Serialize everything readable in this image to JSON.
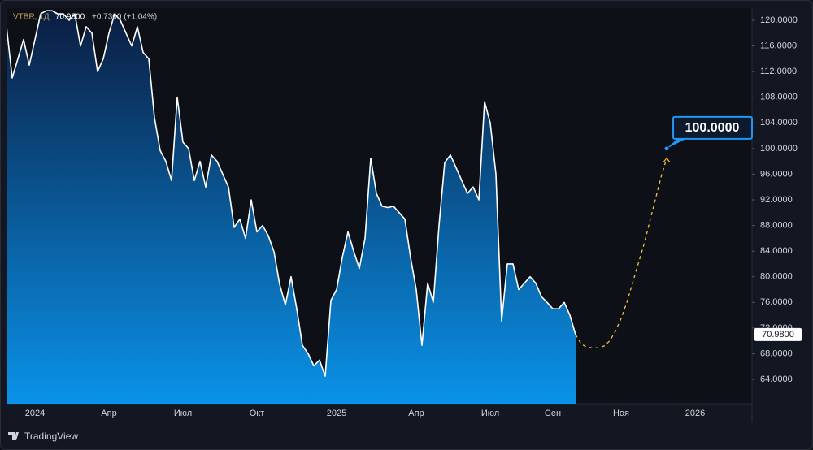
{
  "chart_data": {
    "type": "area",
    "symbol": "VTBR, 1Д",
    "price_label": "70.9800",
    "change": "+0.7300 (+1.04%)",
    "brand": "TradingView",
    "categories": [
      null,
      null,
      null,
      null,
      null,
      "2024",
      null,
      null,
      null,
      null,
      null,
      null,
      null,
      null,
      null,
      null,
      null,
      null,
      "Апр",
      null,
      null,
      null,
      null,
      null,
      null,
      null,
      null,
      null,
      null,
      null,
      null,
      "Июл",
      null,
      null,
      null,
      null,
      null,
      null,
      null,
      null,
      null,
      null,
      null,
      null,
      "Окт",
      null,
      null,
      null,
      null,
      null,
      null,
      null,
      null,
      null,
      null,
      null,
      null,
      null,
      "2025",
      null,
      null,
      null,
      null,
      null,
      null,
      null,
      null,
      null,
      null,
      null,
      null,
      null,
      "Апр",
      null,
      null,
      null,
      null,
      null,
      null,
      null,
      null,
      null,
      null,
      null,
      null,
      "Июл",
      null,
      null,
      null,
      null,
      null,
      null,
      null,
      null,
      null,
      null,
      "Сен",
      null,
      null,
      null,
      null,
      null,
      null,
      null,
      null,
      null,
      null,
      null,
      "Ноя",
      null,
      null,
      null,
      null,
      null,
      null,
      null,
      null,
      null,
      null,
      null,
      null,
      "2026",
      null,
      null,
      null,
      null,
      null,
      null,
      null,
      null,
      null,
      null
    ],
    "series": [
      {
        "name": "VTBR",
        "color": "#ffffff",
        "values": [
          119,
          111,
          114,
          117,
          113,
          117,
          121,
          121.5,
          121.5,
          121,
          121,
          120,
          121,
          116,
          119,
          118,
          112,
          114,
          118,
          121,
          120,
          118,
          116,
          119,
          115,
          114,
          104.8,
          99.7,
          98,
          95,
          108,
          101,
          100,
          95,
          98,
          94,
          99,
          98,
          96,
          94,
          87.7,
          89,
          86,
          92,
          87,
          88,
          86.4,
          83.9,
          78.8,
          75.6,
          80,
          75,
          69.3,
          68,
          66.1,
          67,
          64.5,
          76.3,
          78,
          83,
          87,
          84,
          81.3,
          86,
          98.5,
          93,
          91,
          90.8,
          91,
          90,
          89,
          83,
          78,
          69.3,
          79,
          76,
          88,
          97.8,
          99,
          97,
          95,
          93,
          94,
          92,
          107.3,
          104,
          96,
          73.1,
          82,
          82,
          78,
          79,
          80,
          79,
          76.9,
          76,
          75,
          75,
          76,
          74,
          70.98,
          null,
          null,
          null,
          null,
          null,
          null,
          null,
          null,
          null,
          null,
          null,
          null,
          null,
          null,
          null,
          null,
          null,
          null,
          null,
          null,
          null,
          null,
          null,
          null,
          null,
          null,
          null,
          null,
          null,
          null,
          null
        ]
      },
      {
        "name": "forecast",
        "color": "#f0c23a",
        "dashed": true,
        "values": [
          null,
          null,
          null,
          null,
          null,
          null,
          null,
          null,
          null,
          null,
          null,
          null,
          null,
          null,
          null,
          null,
          null,
          null,
          null,
          null,
          null,
          null,
          null,
          null,
          null,
          null,
          null,
          null,
          null,
          null,
          null,
          null,
          null,
          null,
          null,
          null,
          null,
          null,
          null,
          null,
          null,
          null,
          null,
          null,
          null,
          null,
          null,
          null,
          null,
          null,
          null,
          null,
          null,
          null,
          null,
          null,
          null,
          null,
          null,
          null,
          null,
          null,
          null,
          null,
          null,
          null,
          null,
          null,
          null,
          null,
          null,
          null,
          null,
          null,
          null,
          null,
          null,
          null,
          null,
          null,
          null,
          null,
          null,
          null,
          null,
          null,
          null,
          null,
          null,
          null,
          null,
          null,
          null,
          null,
          null,
          null,
          null,
          null,
          null,
          null,
          70.98,
          69.5,
          69,
          68.9,
          68.9,
          69.2,
          70,
          71.5,
          73.5,
          76,
          79,
          82,
          85,
          88.5,
          92,
          95.5,
          98.5,
          null,
          null,
          null,
          null,
          null,
          null,
          null,
          null,
          null,
          null,
          null,
          null,
          null,
          null,
          null
        ]
      }
    ],
    "annotation": {
      "label": "100.0000",
      "value": 100
    },
    "ylim": [
      60.2,
      121.9
    ],
    "yticks": [
      {
        "value": 64,
        "label": "64.0000"
      },
      {
        "value": 68,
        "label": "68.0000"
      },
      {
        "value": 72,
        "label": "72.0000"
      },
      {
        "value": 76,
        "label": "76.0000"
      },
      {
        "value": 80,
        "label": "80.0000"
      },
      {
        "value": 84,
        "label": "84.0000"
      },
      {
        "value": 88,
        "label": "88.0000"
      },
      {
        "value": 92,
        "label": "92.0000"
      },
      {
        "value": 96,
        "label": "96.0000"
      },
      {
        "value": 100,
        "label": "100.0000"
      },
      {
        "value": 104,
        "label": "104.0000"
      },
      {
        "value": 108,
        "label": "108.0000"
      },
      {
        "value": 112,
        "label": "112.0000"
      },
      {
        "value": 116,
        "label": "116.0000"
      },
      {
        "value": 120,
        "label": "120.0000"
      }
    ],
    "grid": false
  }
}
